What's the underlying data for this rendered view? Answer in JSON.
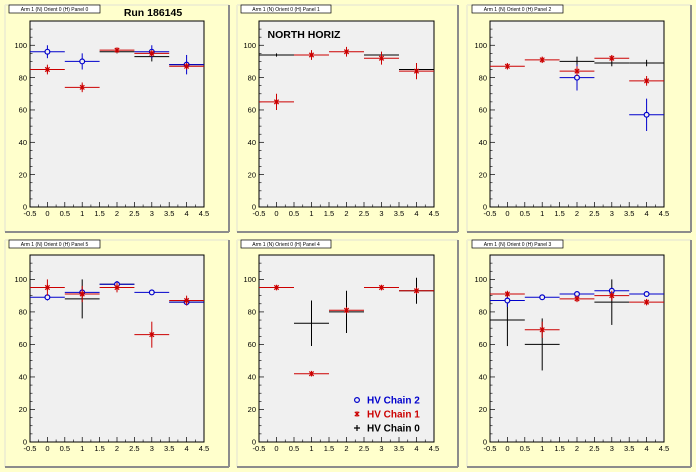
{
  "annotations": {
    "run_label": "Run 186145",
    "north_horiz": "NORTH HORIZ"
  },
  "legend": {
    "entries": [
      {
        "label": "HV Chain 2",
        "color": "#0000cc",
        "marker": "circle"
      },
      {
        "label": "HV Chain 1",
        "color": "#cc0000",
        "marker": "star"
      },
      {
        "label": "HV Chain 0",
        "color": "#000000",
        "marker": "cross"
      }
    ]
  },
  "chart_data": [
    {
      "type": "scatter",
      "title": "Arm 1 (N) Orient 0 (H) Panel 0",
      "xlim": [
        -0.5,
        4.5
      ],
      "ylim": [
        0,
        115
      ],
      "xticks": [
        "-0.5",
        "0",
        "0.5",
        "1",
        "1.5",
        "2",
        "2.5",
        "3",
        "3.5",
        "4",
        "4.5"
      ],
      "yticks": [
        "0",
        "20",
        "40",
        "60",
        "80",
        "100"
      ],
      "series": [
        {
          "color": "#000000",
          "marker": "cross",
          "points": [
            {
              "x": 2,
              "y": 96,
              "xerr": 0.5,
              "yerr": 1
            },
            {
              "x": 3,
              "y": 93,
              "xerr": 0.5,
              "yerr": 3
            },
            {
              "x": 4,
              "y": 88,
              "xerr": 0.5,
              "yerr": 2
            }
          ]
        },
        {
          "color": "#0000cc",
          "marker": "circle",
          "points": [
            {
              "x": 0,
              "y": 96,
              "xerr": 0.5,
              "yerr": 4
            },
            {
              "x": 1,
              "y": 90,
              "xerr": 0.5,
              "yerr": 5
            },
            {
              "x": 3,
              "y": 96,
              "xerr": 0.5,
              "yerr": 4
            },
            {
              "x": 4,
              "y": 88,
              "xerr": 0.5,
              "yerr": 6
            }
          ]
        },
        {
          "color": "#cc0000",
          "marker": "star",
          "points": [
            {
              "x": 0,
              "y": 85,
              "xerr": 0.5,
              "yerr": 3
            },
            {
              "x": 1,
              "y": 74,
              "xerr": 0.5,
              "yerr": 3
            },
            {
              "x": 2,
              "y": 97,
              "xerr": 0.5,
              "yerr": 1
            },
            {
              "x": 3,
              "y": 95,
              "xerr": 0.5,
              "yerr": 2
            },
            {
              "x": 4,
              "y": 87,
              "xerr": 0.5,
              "yerr": 2
            }
          ]
        }
      ]
    },
    {
      "type": "scatter",
      "title": "Arm 1 (N) Orient 0 (H) Panel 1",
      "xlim": [
        -0.5,
        4.5
      ],
      "ylim": [
        0,
        115
      ],
      "xticks": [
        "-0.5",
        "0",
        "0.5",
        "1",
        "1.5",
        "2",
        "2.5",
        "3",
        "3.5",
        "4",
        "4.5"
      ],
      "yticks": [
        "0",
        "20",
        "40",
        "60",
        "80",
        "100"
      ],
      "series": [
        {
          "color": "#000000",
          "marker": "cross",
          "points": [
            {
              "x": 0,
              "y": 94,
              "xerr": 0.5,
              "yerr": 1
            },
            {
              "x": 3,
              "y": 94,
              "xerr": 0.5,
              "yerr": 2
            },
            {
              "x": 4,
              "y": 85,
              "xerr": 0.5,
              "yerr": 2
            }
          ]
        },
        {
          "color": "#cc0000",
          "marker": "star",
          "points": [
            {
              "x": 0,
              "y": 65,
              "xerr": 0.5,
              "yerr": 5
            },
            {
              "x": 1,
              "y": 94,
              "xerr": 0.5,
              "yerr": 3
            },
            {
              "x": 2,
              "y": 96,
              "xerr": 0.5,
              "yerr": 3
            },
            {
              "x": 3,
              "y": 92,
              "xerr": 0.5,
              "yerr": 4
            },
            {
              "x": 4,
              "y": 84,
              "xerr": 0.5,
              "yerr": 5
            }
          ]
        }
      ]
    },
    {
      "type": "scatter",
      "title": "Arm 1 (N) Orient 0 (H) Panel 2",
      "xlim": [
        -0.5,
        4.5
      ],
      "ylim": [
        0,
        115
      ],
      "xticks": [
        "-0.5",
        "0",
        "0.5",
        "1",
        "1.5",
        "2",
        "2.5",
        "3",
        "3.5",
        "4",
        "4.5"
      ],
      "yticks": [
        "0",
        "20",
        "40",
        "60",
        "80",
        "100"
      ],
      "series": [
        {
          "color": "#000000",
          "marker": "cross",
          "points": [
            {
              "x": 2,
              "y": 90,
              "xerr": 0.5,
              "yerr": 3
            },
            {
              "x": 3,
              "y": 89,
              "xerr": 0.5,
              "yerr": 2
            },
            {
              "x": 4,
              "y": 89,
              "xerr": 0.5,
              "yerr": 2
            }
          ]
        },
        {
          "color": "#0000cc",
          "marker": "circle",
          "points": [
            {
              "x": 2,
              "y": 80,
              "xerr": 0.5,
              "yerr": 8
            },
            {
              "x": 4,
              "y": 57,
              "xerr": 0.5,
              "yerr": 10
            }
          ]
        },
        {
          "color": "#cc0000",
          "marker": "star",
          "points": [
            {
              "x": 0,
              "y": 87,
              "xerr": 0.5,
              "yerr": 2
            },
            {
              "x": 1,
              "y": 91,
              "xerr": 0.5,
              "yerr": 2
            },
            {
              "x": 2,
              "y": 84,
              "xerr": 0.5,
              "yerr": 3
            },
            {
              "x": 3,
              "y": 92,
              "xerr": 0.5,
              "yerr": 2
            },
            {
              "x": 4,
              "y": 78,
              "xerr": 0.5,
              "yerr": 3
            }
          ]
        }
      ]
    },
    {
      "type": "scatter",
      "title": "Arm 1 (N) Orient 0 (H) Panel 5",
      "xlim": [
        -0.5,
        4.5
      ],
      "ylim": [
        0,
        115
      ],
      "xticks": [
        "-0.5",
        "0",
        "0.5",
        "1",
        "1.5",
        "2",
        "2.5",
        "3",
        "3.5",
        "4",
        "4.5"
      ],
      "yticks": [
        "0",
        "20",
        "40",
        "60",
        "80",
        "100"
      ],
      "series": [
        {
          "color": "#000000",
          "marker": "cross",
          "points": [
            {
              "x": 1,
              "y": 88,
              "xerr": 0.5,
              "yerr": 12
            },
            {
              "x": 2,
              "y": 97,
              "xerr": 0.5,
              "yerr": 2
            },
            {
              "x": 4,
              "y": 86,
              "xerr": 0.5,
              "yerr": 2
            }
          ]
        },
        {
          "color": "#0000cc",
          "marker": "circle",
          "points": [
            {
              "x": 0,
              "y": 89,
              "xerr": 0.5,
              "yerr": 2
            },
            {
              "x": 1,
              "y": 92,
              "xerr": 0.5,
              "yerr": 2
            },
            {
              "x": 2,
              "y": 97,
              "xerr": 0.5,
              "yerr": 2
            },
            {
              "x": 3,
              "y": 92,
              "xerr": 0.5,
              "yerr": 1
            },
            {
              "x": 4,
              "y": 86,
              "xerr": 0.5,
              "yerr": 2
            }
          ]
        },
        {
          "color": "#cc0000",
          "marker": "star",
          "points": [
            {
              "x": 0,
              "y": 95,
              "xerr": 0.5,
              "yerr": 5
            },
            {
              "x": 1,
              "y": 91,
              "xerr": 0.5,
              "yerr": 5
            },
            {
              "x": 2,
              "y": 95,
              "xerr": 0.5,
              "yerr": 3
            },
            {
              "x": 3,
              "y": 66,
              "xerr": 0.5,
              "yerr": 8
            },
            {
              "x": 4,
              "y": 87,
              "xerr": 0.5,
              "yerr": 3
            }
          ]
        }
      ]
    },
    {
      "type": "scatter",
      "title": "Arm 1 (N) Orient 0 (H) Panel 4",
      "xlim": [
        -0.5,
        4.5
      ],
      "ylim": [
        0,
        115
      ],
      "xticks": [
        "-0.5",
        "0",
        "0.5",
        "1",
        "1.5",
        "2",
        "2.5",
        "3",
        "3.5",
        "4",
        "4.5"
      ],
      "yticks": [
        "0",
        "20",
        "40",
        "60",
        "80",
        "100"
      ],
      "series": [
        {
          "color": "#000000",
          "marker": "cross",
          "points": [
            {
              "x": 1,
              "y": 73,
              "xerr": 0.5,
              "yerr": 14
            },
            {
              "x": 2,
              "y": 80,
              "xerr": 0.5,
              "yerr": 13
            },
            {
              "x": 4,
              "y": 93,
              "xerr": 0.5,
              "yerr": 8
            }
          ]
        },
        {
          "color": "#cc0000",
          "marker": "star",
          "points": [
            {
              "x": 0,
              "y": 95,
              "xerr": 0.5,
              "yerr": 1
            },
            {
              "x": 1,
              "y": 42,
              "xerr": 0.5,
              "yerr": 1
            },
            {
              "x": 2,
              "y": 81,
              "xerr": 0.5,
              "yerr": 2
            },
            {
              "x": 3,
              "y": 95,
              "xerr": 0.5,
              "yerr": 1
            },
            {
              "x": 4,
              "y": 93,
              "xerr": 0.5,
              "yerr": 2
            }
          ]
        }
      ]
    },
    {
      "type": "scatter",
      "title": "Arm 1 (N) Orient 0 (H) Panel 3",
      "xlim": [
        -0.5,
        4.5
      ],
      "ylim": [
        0,
        115
      ],
      "xticks": [
        "-0.5",
        "0",
        "0.5",
        "1",
        "1.5",
        "2",
        "2.5",
        "3",
        "3.5",
        "4",
        "4.5"
      ],
      "yticks": [
        "0",
        "20",
        "40",
        "60",
        "80",
        "100"
      ],
      "series": [
        {
          "color": "#000000",
          "marker": "cross",
          "points": [
            {
              "x": 0,
              "y": 75,
              "xerr": 0.5,
              "yerr": 16
            },
            {
              "x": 1,
              "y": 60,
              "xerr": 0.5,
              "yerr": 16
            },
            {
              "x": 3,
              "y": 86,
              "xerr": 0.5,
              "yerr": 14
            }
          ]
        },
        {
          "color": "#0000cc",
          "marker": "circle",
          "points": [
            {
              "x": 0,
              "y": 87,
              "xerr": 0.5,
              "yerr": 4
            },
            {
              "x": 1,
              "y": 89,
              "xerr": 0.5,
              "yerr": 1
            },
            {
              "x": 2,
              "y": 91,
              "xerr": 0.5,
              "yerr": 1
            },
            {
              "x": 3,
              "y": 93,
              "xerr": 0.5,
              "yerr": 2
            },
            {
              "x": 4,
              "y": 91,
              "xerr": 0.5,
              "yerr": 1
            }
          ]
        },
        {
          "color": "#cc0000",
          "marker": "star",
          "points": [
            {
              "x": 0,
              "y": 91,
              "xerr": 0.5,
              "yerr": 2
            },
            {
              "x": 1,
              "y": 69,
              "xerr": 0.5,
              "yerr": 5
            },
            {
              "x": 2,
              "y": 88,
              "xerr": 0.5,
              "yerr": 2
            },
            {
              "x": 3,
              "y": 90,
              "xerr": 0.5,
              "yerr": 3
            },
            {
              "x": 4,
              "y": 86,
              "xerr": 0.5,
              "yerr": 2
            }
          ]
        }
      ]
    }
  ]
}
